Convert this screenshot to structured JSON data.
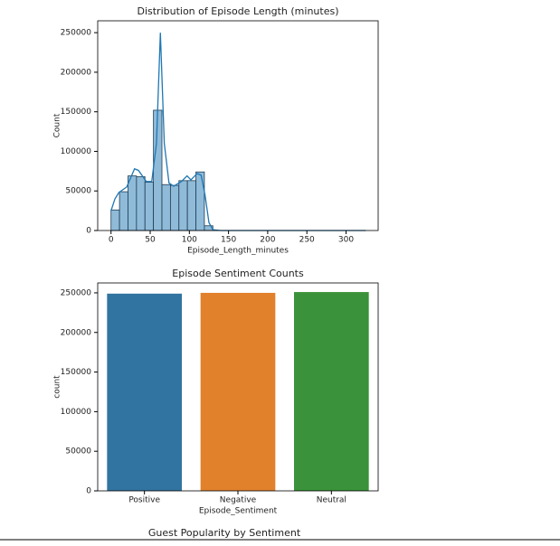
{
  "chart_data": [
    {
      "type": "histogram",
      "title": "Distribution of Episode Length (minutes)",
      "xlabel": "Episode_Length_minutes",
      "ylabel": "Count",
      "bins": [
        0,
        10.83,
        21.67,
        32.5,
        43.33,
        54.17,
        65,
        75.83,
        86.67,
        97.5,
        108.33,
        119.17,
        130,
        140.83,
        151.67,
        162.5,
        173.33,
        184.17,
        195,
        205.83,
        216.67,
        227.5,
        238.33,
        249.17,
        260,
        270.83,
        281.67,
        292.5,
        303.33,
        314.17,
        325
      ],
      "values": [
        26000,
        49000,
        69000,
        68000,
        61000,
        152000,
        58000,
        57000,
        63000,
        63000,
        74000,
        6000,
        100,
        100,
        100,
        100,
        100,
        100,
        100,
        100,
        100,
        100,
        100,
        100,
        100,
        100,
        100,
        100,
        100,
        100
      ],
      "color": "#8fbbd9",
      "edge_color": "#1f3b52",
      "kde": {
        "color": "#1f77b4",
        "x": [
          0,
          5,
          10,
          20,
          30,
          35,
          45,
          52,
          58,
          63,
          68,
          74,
          80,
          90,
          97,
          102,
          110,
          115,
          120,
          125,
          130,
          140,
          200,
          325
        ],
        "values": [
          25000,
          40000,
          48000,
          55000,
          78000,
          76000,
          62000,
          62000,
          110000,
          250000,
          110000,
          60000,
          56000,
          62000,
          69000,
          64000,
          72000,
          70000,
          45000,
          10000,
          1000,
          0,
          0,
          0
        ]
      },
      "xlim": [
        -17,
        341
      ],
      "xticks": [
        0,
        50,
        100,
        150,
        200,
        250,
        300
      ],
      "ylim": [
        0,
        265000
      ],
      "yticks": [
        0,
        50000,
        100000,
        150000,
        200000,
        250000
      ]
    },
    {
      "type": "bar",
      "title": "Episode Sentiment Counts",
      "xlabel": "Episode_Sentiment",
      "ylabel": "count",
      "categories": [
        "Positive",
        "Negative",
        "Neutral"
      ],
      "values": [
        249000,
        250000,
        251000
      ],
      "colors": [
        "#3274a1",
        "#e1812c",
        "#3a923a"
      ],
      "ylim": [
        0,
        262500
      ],
      "yticks": [
        0,
        50000,
        100000,
        150000,
        200000,
        250000
      ]
    }
  ],
  "next_title": "Guest Popularity by Sentiment"
}
